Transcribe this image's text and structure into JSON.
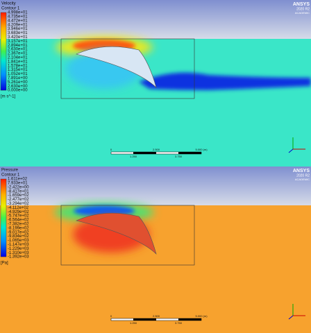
{
  "panels": [
    {
      "title": "Velocity",
      "subtitle": "Contour 1",
      "legend": [
        "4.998e+01",
        "4.735e+01",
        "4.472e+01",
        "4.209e+01",
        "3.946e+01",
        "3.683e+01",
        "3.420e+01",
        "3.157e+01",
        "2.894e+01",
        "2.630e+01",
        "2.367e+01",
        "2.104e+01",
        "1.841e+01",
        "1.578e+01",
        "1.315e+01",
        "1.052e+01",
        "7.891e+00",
        "5.261e+00",
        "2.630e+00",
        "0.000e+00"
      ],
      "unit": "[m s^-1]",
      "logo": {
        "name": "ANSYS",
        "version": "2020 R2",
        "edition": "ACADEMIC"
      },
      "scale": {
        "top": [
          "0",
          "2.500",
          "5.000 (m)"
        ],
        "bottom": [
          "1.250",
          "3.750"
        ]
      }
    },
    {
      "title": "Pressure",
      "subtitle": "Contour 1",
      "legend": [
        "1.611e+02",
        "7.933e+01",
        "-2.422e+00",
        "-8.417e+01",
        "-1.659e+02",
        "-2.477e+02",
        "-3.294e+02",
        "-4.112e+02",
        "-4.929e+02",
        "-5.747e+02",
        "-6.564e+02",
        "-7.382e+02",
        "-8.199e+02",
        "-9.017e+02",
        "-9.834e+02",
        "-1.065e+03",
        "-1.147e+03",
        "-1.229e+03",
        "-1.310e+03",
        "-1.392e+03"
      ],
      "unit": "[Pa]",
      "logo": {
        "name": "ANSYS",
        "version": "2020 R2",
        "edition": "ACADEMIC"
      },
      "scale": {
        "top": [
          "0",
          "2.500",
          "5.000 (m)"
        ],
        "bottom": [
          "1.250",
          "3.750"
        ]
      }
    }
  ]
}
